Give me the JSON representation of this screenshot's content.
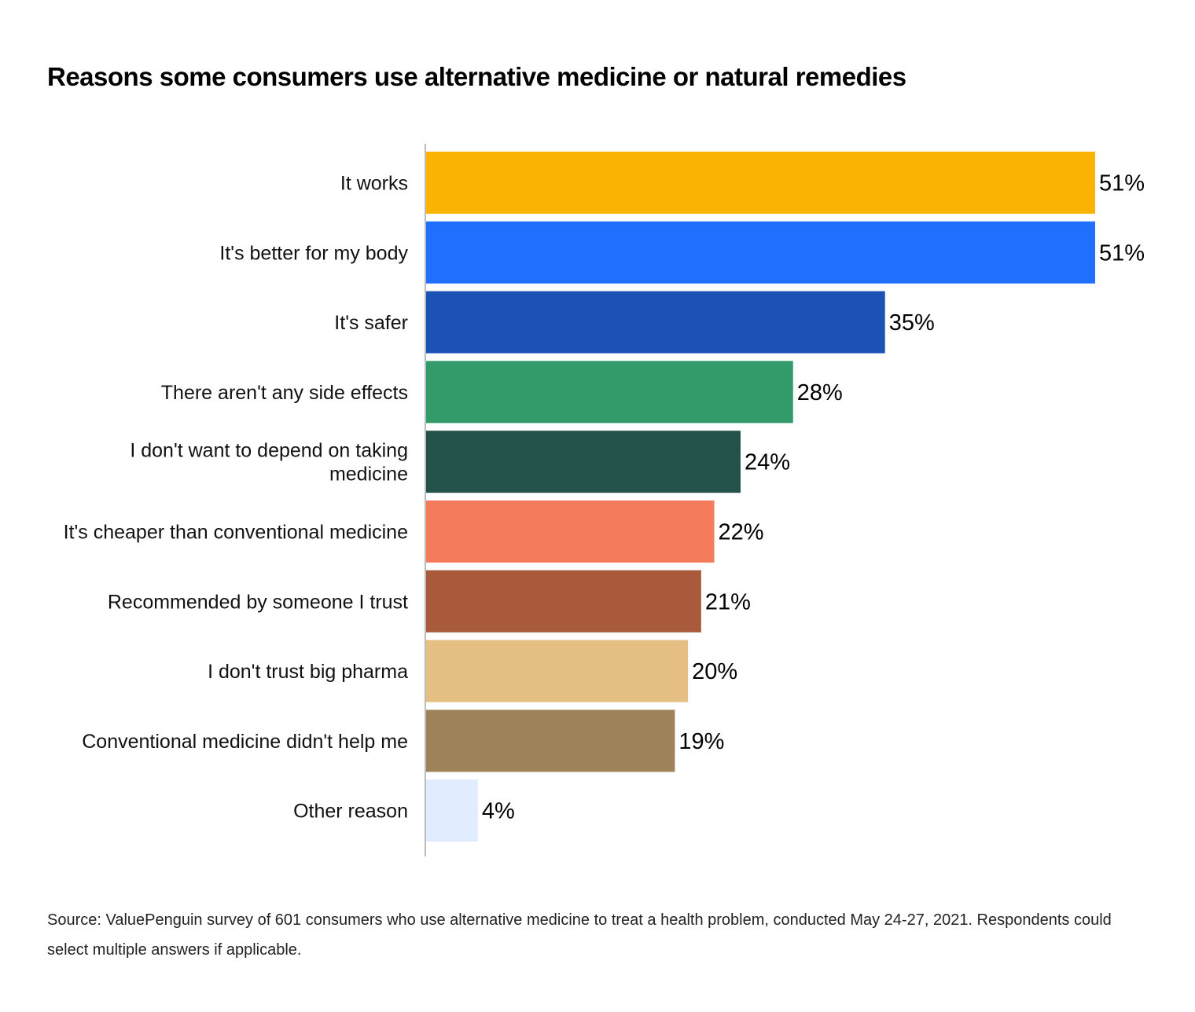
{
  "title": "Reasons some consumers use alternative medicine or natural remedies",
  "source": "Source: ValuePenguin survey of 601 consumers who use alternative medicine to treat a health problem, conducted May 24-27, 2021. Respondents could select multiple answers if applicable.",
  "chart_data": {
    "type": "bar",
    "orientation": "horizontal",
    "title": "Reasons some consumers use alternative medicine or natural remedies",
    "xlabel": "",
    "ylabel": "",
    "xlim": [
      0,
      51
    ],
    "grid": false,
    "legend": "none",
    "value_suffix": "%",
    "categories": [
      [
        "It works"
      ],
      [
        "It's better for my body"
      ],
      [
        "It's safer"
      ],
      [
        "There aren't any side effects"
      ],
      [
        "I don't want to depend on taking",
        "medicine"
      ],
      [
        "It's cheaper than conventional medicine"
      ],
      [
        "Recommended by someone I trust"
      ],
      [
        "I don't trust big pharma"
      ],
      [
        "Conventional medicine didn't help me"
      ],
      [
        "Other reason"
      ]
    ],
    "values": [
      51,
      51,
      35,
      28,
      24,
      22,
      21,
      20,
      19,
      4
    ],
    "colors": [
      "#FAB400",
      "#206FFF",
      "#1C51B5",
      "#339A69",
      "#225249",
      "#F47C5C",
      "#A85A3A",
      "#E5BF84",
      "#9E8259",
      "#E1EDFF"
    ],
    "axis_color": "#BBBBBB"
  }
}
